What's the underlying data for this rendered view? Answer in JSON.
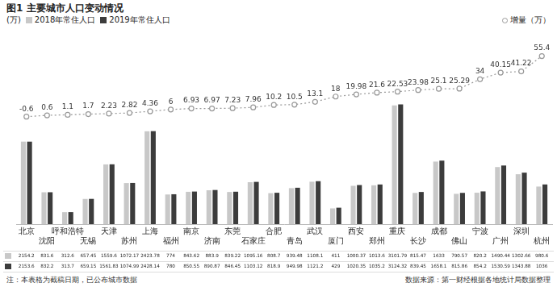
{
  "chart_data": {
    "type": "bar",
    "title": "图1 主要城市人口变动情况",
    "y_label": "(万)",
    "categories": [
      "北京",
      "沈阳",
      "呼和浩特",
      "无锡",
      "天津",
      "苏州",
      "上海",
      "福州",
      "南京",
      "济南",
      "东莞",
      "石家庄",
      "合肥",
      "青岛",
      "武汉",
      "厦门",
      "西安",
      "郑州",
      "重庆",
      "长沙",
      "成都",
      "佛山",
      "宁波",
      "广州",
      "深圳",
      "杭州"
    ],
    "series": [
      {
        "name": "2018年常住人口",
        "color": "#c8c8c8",
        "values": [
          2154.2,
          831.6,
          312.6,
          657.45,
          1559.6,
          1072.17,
          2423.78,
          774,
          843.62,
          883.9,
          839.22,
          1095.16,
          808.7,
          939.48,
          1108.1,
          411,
          1000.37,
          1013.6,
          3101.79,
          815.47,
          1633,
          790.57,
          820.2,
          1490.44,
          1302.66,
          980.6
        ]
      },
      {
        "name": "2019年常住人口",
        "color": "#3c3c3c",
        "values": [
          2153.6,
          832.2,
          313.7,
          659.15,
          1561.83,
          1074.99,
          2428.14,
          780,
          850.55,
          890.87,
          846.45,
          1103.12,
          818.9,
          949.98,
          1121.2,
          429,
          1020.35,
          1035.2,
          3124.32,
          839.45,
          1658.1,
          815.86,
          854.2,
          1530.59,
          1343.88,
          1036
        ]
      },
      {
        "name": "增量（万）",
        "type": "line",
        "axis": "y2",
        "color": "#999999",
        "marker": "circle",
        "line_style": "dotted",
        "data_labels": true,
        "values": [
          -0.6,
          0.6,
          1.1,
          1.7,
          2.23,
          2.82,
          4.36,
          6,
          6.93,
          6.97,
          7.23,
          7.96,
          10.2,
          10.5,
          13.1,
          18,
          19.98,
          21.6,
          22.53,
          23.98,
          25.1,
          25.29,
          34,
          40.15,
          41.22,
          55.4
        ]
      }
    ],
    "ylim": [
      0,
      4800
    ],
    "y2lim": [
      -100,
      70
    ],
    "grid": false,
    "tick_labels": "x",
    "legend": "top",
    "footnote": "注：本表格为截稿日期，已公布城市数据",
    "source": "数据来源：第一财经根据各地统计局数据整理"
  }
}
